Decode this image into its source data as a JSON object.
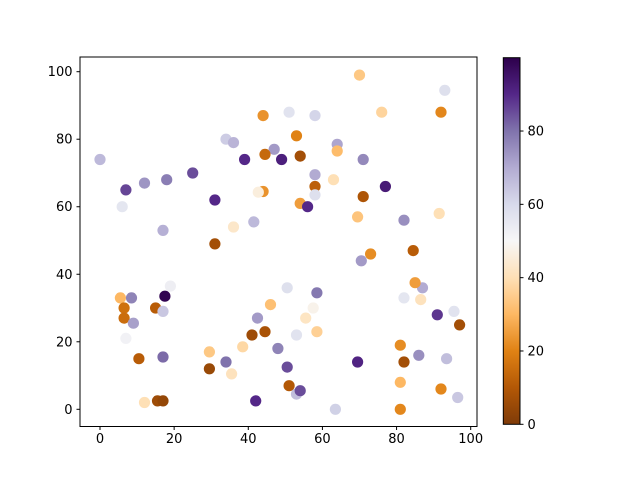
{
  "figure": {
    "background": "#ffffff"
  },
  "chart_data": {
    "type": "scatter",
    "title": "",
    "xlabel": "",
    "ylabel": "",
    "grid": false,
    "xticks": [
      0,
      20,
      40,
      60,
      80,
      100
    ],
    "yticks": [
      0,
      20,
      40,
      60,
      80,
      100
    ],
    "xlim": [
      -5.4,
      101.7
    ],
    "ylim": [
      -5.1,
      104.3
    ],
    "colormap": "PuOr",
    "colormap_stops": [
      [
        0,
        "#7f3b08"
      ],
      [
        10,
        "#b35806"
      ],
      [
        20,
        "#e08214"
      ],
      [
        30,
        "#fdb863"
      ],
      [
        40,
        "#fee0b6"
      ],
      [
        50,
        "#f7f7f7"
      ],
      [
        60,
        "#d8daeb"
      ],
      [
        70,
        "#b2abd2"
      ],
      [
        80,
        "#8073ac"
      ],
      [
        90,
        "#542788"
      ],
      [
        100,
        "#2d004b"
      ]
    ],
    "colorbar": {
      "vmin": 0,
      "vmax": 100,
      "ticks": [
        0,
        20,
        40,
        60,
        80
      ],
      "position": "right"
    },
    "marker": {
      "shape": "circle",
      "radius_px": 5.6
    },
    "points": [
      {
        "x": 0,
        "y": 74,
        "c": 67
      },
      {
        "x": 7,
        "y": 65,
        "c": 86
      },
      {
        "x": 12,
        "y": 67,
        "c": 74
      },
      {
        "x": 18,
        "y": 68,
        "c": 78
      },
      {
        "x": 25,
        "y": 70,
        "c": 85
      },
      {
        "x": 6,
        "y": 60,
        "c": 56
      },
      {
        "x": 17,
        "y": 53,
        "c": 69
      },
      {
        "x": 44,
        "y": 87,
        "c": 23
      },
      {
        "x": 34,
        "y": 80,
        "c": 63
      },
      {
        "x": 36,
        "y": 79,
        "c": 68
      },
      {
        "x": 39,
        "y": 74,
        "c": 90
      },
      {
        "x": 47,
        "y": 77,
        "c": 73
      },
      {
        "x": 44.5,
        "y": 75.5,
        "c": 14
      },
      {
        "x": 49,
        "y": 74,
        "c": 92
      },
      {
        "x": 31,
        "y": 62,
        "c": 90
      },
      {
        "x": 44,
        "y": 64.5,
        "c": 23
      },
      {
        "x": 42.7,
        "y": 64.3,
        "c": 46
      },
      {
        "x": 36,
        "y": 54,
        "c": 43
      },
      {
        "x": 41.5,
        "y": 55.5,
        "c": 67
      },
      {
        "x": 70,
        "y": 99,
        "c": 34
      },
      {
        "x": 93,
        "y": 94.5,
        "c": 58
      },
      {
        "x": 51,
        "y": 88,
        "c": 57
      },
      {
        "x": 58,
        "y": 87,
        "c": 61
      },
      {
        "x": 76,
        "y": 88,
        "c": 37
      },
      {
        "x": 92,
        "y": 88,
        "c": 21
      },
      {
        "x": 53,
        "y": 81,
        "c": 20
      },
      {
        "x": 64,
        "y": 78.5,
        "c": 71
      },
      {
        "x": 64,
        "y": 76.5,
        "c": 31
      },
      {
        "x": 54,
        "y": 75,
        "c": 7
      },
      {
        "x": 71,
        "y": 74,
        "c": 76
      },
      {
        "x": 58,
        "y": 69.5,
        "c": 70
      },
      {
        "x": 63,
        "y": 68,
        "c": 40
      },
      {
        "x": 58,
        "y": 66,
        "c": 12
      },
      {
        "x": 77,
        "y": 66,
        "c": 93
      },
      {
        "x": 58,
        "y": 63.5,
        "c": 58
      },
      {
        "x": 71,
        "y": 63,
        "c": 9
      },
      {
        "x": 54,
        "y": 61,
        "c": 25
      },
      {
        "x": 56,
        "y": 60,
        "c": 90
      },
      {
        "x": 69.5,
        "y": 57,
        "c": 33
      },
      {
        "x": 82,
        "y": 56,
        "c": 75
      },
      {
        "x": 91.5,
        "y": 58,
        "c": 40
      },
      {
        "x": 31,
        "y": 49,
        "c": 7
      },
      {
        "x": 19,
        "y": 36.5,
        "c": 53
      },
      {
        "x": 5.5,
        "y": 33,
        "c": 30
      },
      {
        "x": 8.5,
        "y": 33,
        "c": 77
      },
      {
        "x": 17.5,
        "y": 33.5,
        "c": 99
      },
      {
        "x": 15,
        "y": 30,
        "c": 11
      },
      {
        "x": 17,
        "y": 29,
        "c": 64
      },
      {
        "x": 6.5,
        "y": 30,
        "c": 16
      },
      {
        "x": 6.5,
        "y": 27,
        "c": 15
      },
      {
        "x": 9,
        "y": 25.5,
        "c": 72
      },
      {
        "x": 7,
        "y": 21,
        "c": 52
      },
      {
        "x": 10.5,
        "y": 15,
        "c": 11
      },
      {
        "x": 17,
        "y": 15.5,
        "c": 81
      },
      {
        "x": 29.5,
        "y": 17,
        "c": 34
      },
      {
        "x": 29.5,
        "y": 12,
        "c": 5
      },
      {
        "x": 34,
        "y": 14,
        "c": 80
      },
      {
        "x": 35.5,
        "y": 10.5,
        "c": 41
      },
      {
        "x": 42.5,
        "y": 27,
        "c": 73
      },
      {
        "x": 46,
        "y": 31,
        "c": 32
      },
      {
        "x": 41,
        "y": 22,
        "c": 6
      },
      {
        "x": 44.5,
        "y": 23,
        "c": 8
      },
      {
        "x": 38.5,
        "y": 18.5,
        "c": 38
      },
      {
        "x": 48,
        "y": 18,
        "c": 77
      },
      {
        "x": 12,
        "y": 2,
        "c": 40
      },
      {
        "x": 15.5,
        "y": 2.5,
        "c": 6
      },
      {
        "x": 17,
        "y": 2.5,
        "c": 4
      },
      {
        "x": 42,
        "y": 2.5,
        "c": 90
      },
      {
        "x": 70.5,
        "y": 44,
        "c": 73
      },
      {
        "x": 73,
        "y": 46,
        "c": 22
      },
      {
        "x": 84.5,
        "y": 47,
        "c": 11
      },
      {
        "x": 50.5,
        "y": 36,
        "c": 58
      },
      {
        "x": 58.5,
        "y": 34.5,
        "c": 79
      },
      {
        "x": 87,
        "y": 36,
        "c": 70
      },
      {
        "x": 85,
        "y": 37.5,
        "c": 25
      },
      {
        "x": 82,
        "y": 33,
        "c": 56
      },
      {
        "x": 86.5,
        "y": 32.5,
        "c": 41
      },
      {
        "x": 57.5,
        "y": 30,
        "c": 48
      },
      {
        "x": 55.5,
        "y": 27,
        "c": 42
      },
      {
        "x": 91,
        "y": 28,
        "c": 88
      },
      {
        "x": 95.5,
        "y": 29,
        "c": 57
      },
      {
        "x": 97,
        "y": 25,
        "c": 7
      },
      {
        "x": 58.5,
        "y": 23,
        "c": 36
      },
      {
        "x": 53,
        "y": 22,
        "c": 57
      },
      {
        "x": 81,
        "y": 19,
        "c": 22
      },
      {
        "x": 69.5,
        "y": 14,
        "c": 91
      },
      {
        "x": 82,
        "y": 14,
        "c": 7
      },
      {
        "x": 86,
        "y": 16,
        "c": 75
      },
      {
        "x": 93.5,
        "y": 15,
        "c": 66
      },
      {
        "x": 50.5,
        "y": 12.5,
        "c": 85
      },
      {
        "x": 81,
        "y": 8,
        "c": 30
      },
      {
        "x": 92,
        "y": 6,
        "c": 21
      },
      {
        "x": 96.5,
        "y": 3.5,
        "c": 64
      },
      {
        "x": 53,
        "y": 4.5,
        "c": 66
      },
      {
        "x": 51,
        "y": 7,
        "c": 10
      },
      {
        "x": 54,
        "y": 5.5,
        "c": 85
      },
      {
        "x": 63.5,
        "y": 0,
        "c": 62
      },
      {
        "x": 81,
        "y": 0,
        "c": 21
      }
    ]
  }
}
